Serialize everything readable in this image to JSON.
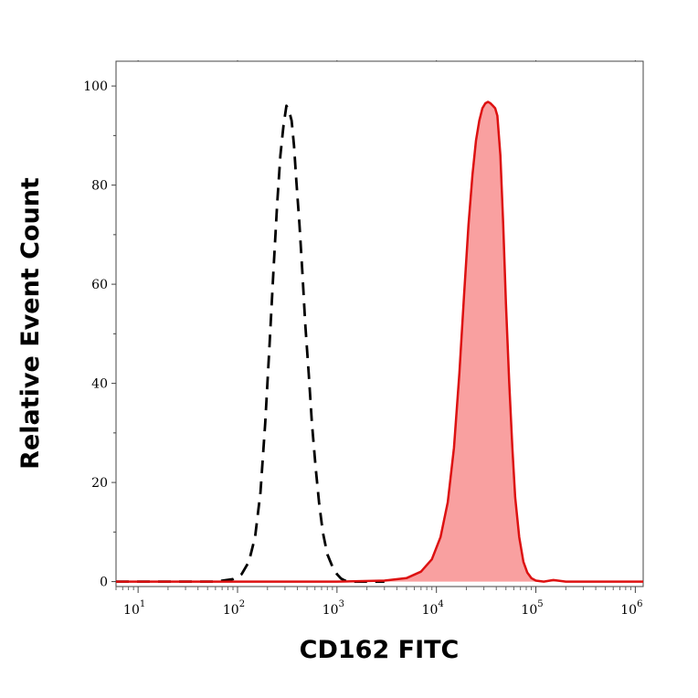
{
  "chart_data": {
    "type": "area",
    "xlabel": "CD162 FITC",
    "ylabel": "Relative Event Count",
    "x_scale": "log",
    "xlim": [
      6,
      1200000
    ],
    "ylim": [
      -1,
      105
    ],
    "x_ticks": [
      {
        "base": "10",
        "exp": "1"
      },
      {
        "base": "10",
        "exp": "2"
      },
      {
        "base": "10",
        "exp": "3"
      },
      {
        "base": "10",
        "exp": "4"
      },
      {
        "base": "10",
        "exp": "5"
      },
      {
        "base": "10",
        "exp": "6"
      }
    ],
    "y_ticks": [
      "0",
      "20",
      "40",
      "60",
      "80",
      "100"
    ],
    "colors": {
      "stained_line": "#dd1111",
      "stained_fill": "#f9a0a0",
      "control_line": "#000000"
    },
    "series": [
      {
        "style": "dashed-black",
        "x": [
          6,
          60,
          90,
          110,
          130,
          150,
          170,
          190,
          210,
          230,
          250,
          270,
          290,
          310,
          330,
          350,
          370,
          390,
          420,
          450,
          480,
          520,
          560,
          610,
          660,
          720,
          800,
          900,
          1000,
          1100,
          1200,
          1300,
          1500,
          2000,
          3000
        ],
        "y": [
          0,
          0,
          0.5,
          1.5,
          4,
          9,
          18,
          32,
          48,
          63,
          76,
          86,
          92,
          96,
          95,
          93,
          88,
          81,
          72,
          62,
          52,
          42,
          32,
          23,
          16,
          10,
          5.5,
          3,
          1.5,
          0.6,
          0.2,
          0,
          0,
          0,
          0
        ]
      },
      {
        "style": "solid-red-filled",
        "x": [
          6,
          1000,
          3000,
          5000,
          7000,
          9000,
          11000,
          13000,
          15000,
          17000,
          19000,
          21000,
          23000,
          25000,
          27000,
          29000,
          31000,
          33000,
          35000,
          37000,
          39000,
          41000,
          44000,
          47000,
          50000,
          54000,
          58000,
          62000,
          68000,
          75000,
          82000,
          90000,
          100000,
          120000,
          150000,
          200000,
          500000,
          1200000
        ],
        "y": [
          0,
          0,
          0.2,
          0.7,
          2,
          4.5,
          9,
          16,
          27,
          42,
          58,
          72,
          82,
          89,
          93,
          95.5,
          96.5,
          96.8,
          96.5,
          96,
          95.5,
          94,
          86,
          72,
          56,
          40,
          27,
          17,
          9,
          4,
          1.8,
          0.7,
          0.2,
          0,
          0.3,
          0,
          0,
          0
        ]
      }
    ]
  }
}
